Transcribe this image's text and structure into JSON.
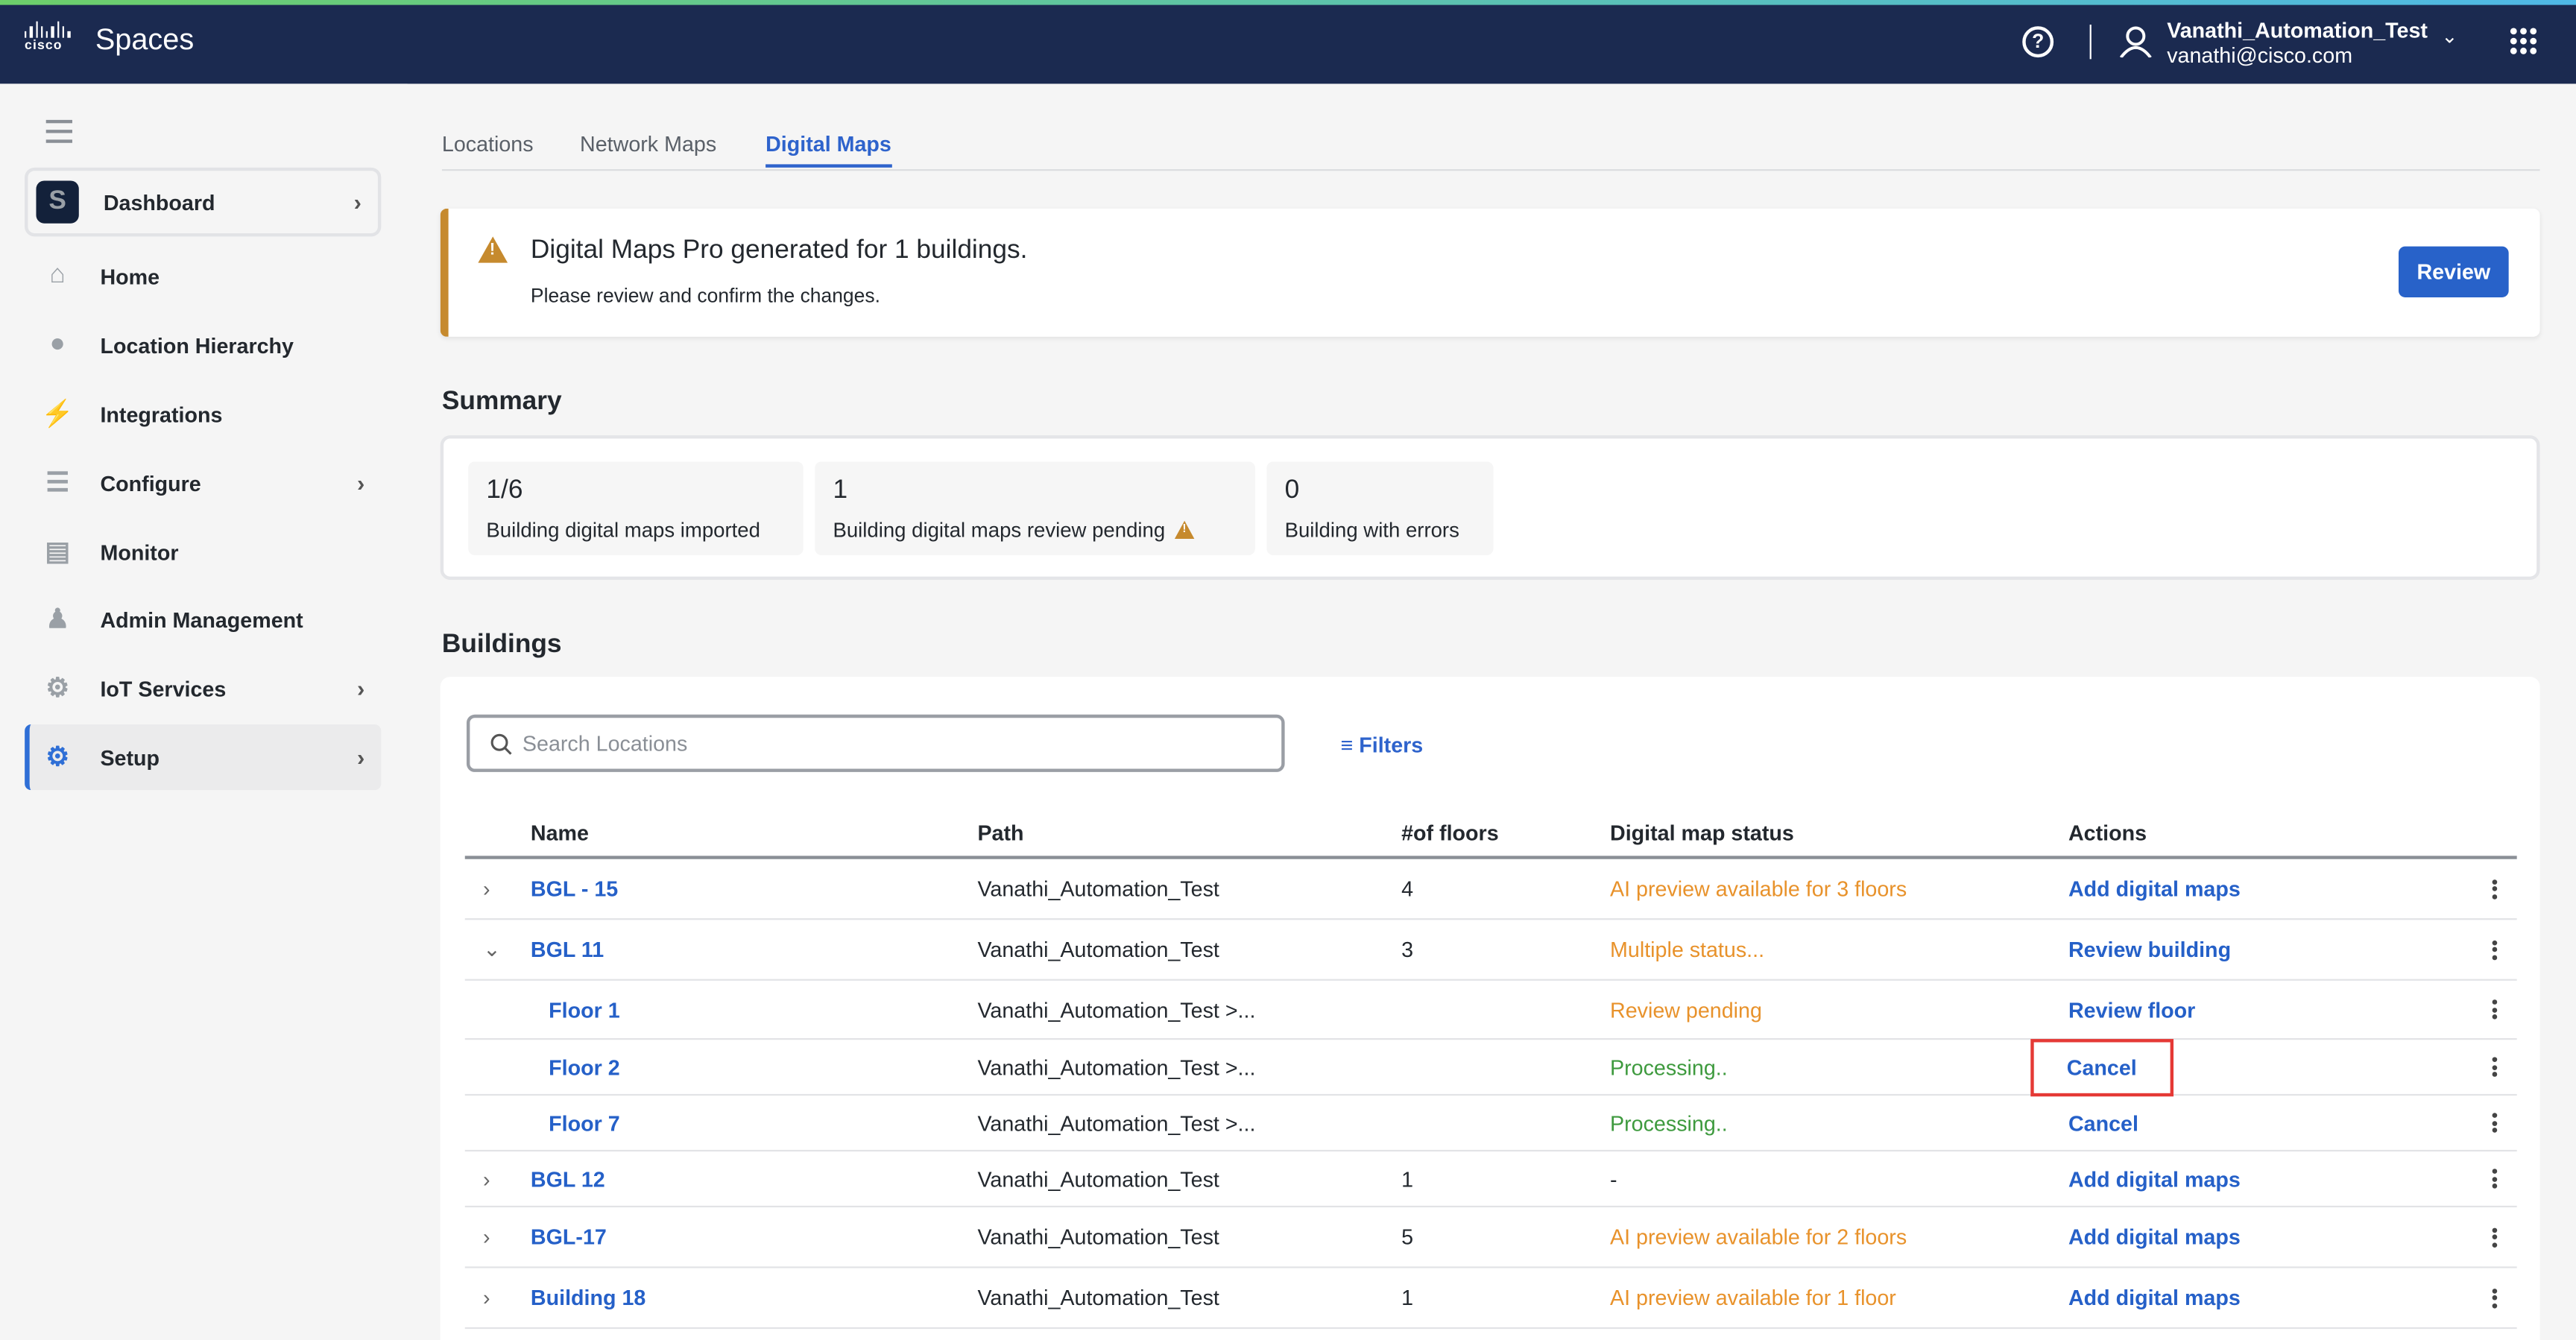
{
  "app": {
    "brand": "cisco",
    "title": "Spaces"
  },
  "user": {
    "name": "Vanathi_Automation_Test",
    "email": "vanathi@cisco.com"
  },
  "sidebar": {
    "items": [
      {
        "label": "Dashboard",
        "icon": "spaces-logo-icon",
        "chevron": true
      },
      {
        "label": "Home",
        "icon": "home-icon",
        "chevron": false
      },
      {
        "label": "Location Hierarchy",
        "icon": "location-pin-icon",
        "chevron": false
      },
      {
        "label": "Integrations",
        "icon": "plug-icon",
        "chevron": false
      },
      {
        "label": "Configure",
        "icon": "sliders-icon",
        "chevron": true
      },
      {
        "label": "Monitor",
        "icon": "monitor-chart-icon",
        "chevron": false
      },
      {
        "label": "Admin Management",
        "icon": "admin-user-icon",
        "chevron": false
      },
      {
        "label": "IoT Services",
        "icon": "chip-icon",
        "chevron": true
      },
      {
        "label": "Setup",
        "icon": "gear-icon",
        "chevron": true,
        "active": true
      }
    ]
  },
  "tabs": [
    {
      "label": "Locations"
    },
    {
      "label": "Network Maps"
    },
    {
      "label": "Digital Maps",
      "active": true
    }
  ],
  "banner": {
    "title": "Digital Maps Pro generated for 1 buildings.",
    "subtitle": "Please review and confirm the changes.",
    "button": "Review"
  },
  "summary": {
    "title": "Summary",
    "stats": [
      {
        "value": "1/6",
        "label": "Building digital maps imported"
      },
      {
        "value": "1",
        "label": "Building digital maps review pending",
        "warning": true
      },
      {
        "value": "0",
        "label": "Building with errors"
      }
    ]
  },
  "buildings": {
    "title": "Buildings",
    "search_placeholder": "Search Locations",
    "filters": "Filters",
    "columns": [
      "Name",
      "Path",
      "#of floors",
      "Digital map status",
      "Actions"
    ],
    "rows": [
      {
        "name": "BGL - 15",
        "path": "Vanathi_Automation_Test",
        "floors": "4",
        "status": "AI preview available for 3 floors",
        "status_color": "orange",
        "action": "Add digital maps",
        "level": 0,
        "expanded": false
      },
      {
        "name": "BGL 11",
        "path": "Vanathi_Automation_Test",
        "floors": "3",
        "status": "Multiple status...",
        "status_color": "orange",
        "action": "Review building",
        "level": 0,
        "expanded": true
      },
      {
        "name": "Floor 1",
        "path": "Vanathi_Automation_Test >...",
        "floors": "",
        "status": "Review pending",
        "status_color": "orange",
        "action": "Review floor",
        "level": 1
      },
      {
        "name": "Floor 2",
        "path": "Vanathi_Automation_Test >...",
        "floors": "",
        "status": "Processing..",
        "status_color": "green",
        "action": "Cancel",
        "level": 1,
        "highlighted": true
      },
      {
        "name": "Floor 7",
        "path": "Vanathi_Automation_Test >...",
        "floors": "",
        "status": "Processing..",
        "status_color": "green",
        "action": "Cancel",
        "level": 1
      },
      {
        "name": "BGL 12",
        "path": "Vanathi_Automation_Test",
        "floors": "1",
        "status": "-",
        "status_color": "default",
        "action": "Add digital maps",
        "level": 0,
        "expanded": false
      },
      {
        "name": "BGL-17",
        "path": "Vanathi_Automation_Test",
        "floors": "5",
        "status": "AI preview available for 2 floors",
        "status_color": "orange",
        "action": "Add digital maps",
        "level": 0,
        "expanded": false
      },
      {
        "name": "Building 18",
        "path": "Vanathi_Automation_Test",
        "floors": "1",
        "status": "AI preview available for 1 floor",
        "status_color": "orange",
        "action": "Add digital maps",
        "level": 0,
        "expanded": false
      }
    ]
  },
  "colors": {
    "topbar": "#1b2a50",
    "accent": "#2e63cc",
    "warning": "#c68a2e",
    "status_orange": "#e8922b",
    "status_green": "#3e9a3e",
    "highlight": "#e53935"
  }
}
